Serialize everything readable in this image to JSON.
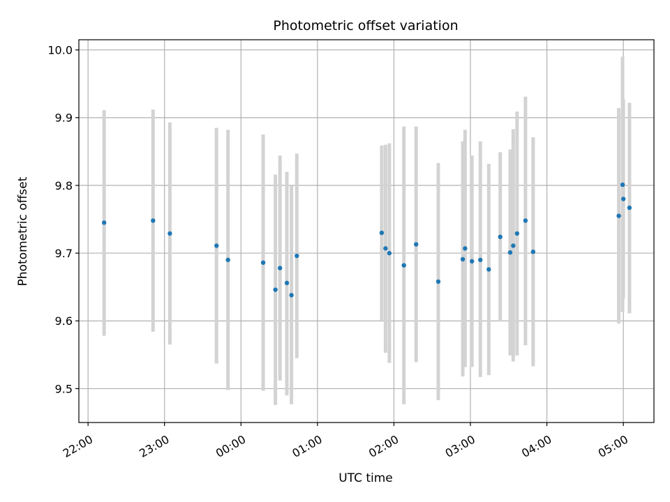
{
  "chart_data": {
    "type": "scatter",
    "title": "Photometric offset variation",
    "xlabel": "UTC time",
    "ylabel": "Photometric offset",
    "x_unit": "hours since 22:00 UTC",
    "xlim": [
      -0.12,
      7.4
    ],
    "ylim": [
      9.45,
      10.015
    ],
    "grid": true,
    "xticks": [
      {
        "x": 0,
        "label": "22:00"
      },
      {
        "x": 1,
        "label": "23:00"
      },
      {
        "x": 2,
        "label": "00:00"
      },
      {
        "x": 3,
        "label": "01:00"
      },
      {
        "x": 4,
        "label": "02:00"
      },
      {
        "x": 5,
        "label": "03:00"
      },
      {
        "x": 6,
        "label": "04:00"
      },
      {
        "x": 7,
        "label": "05:00"
      }
    ],
    "yticks": [
      {
        "y": 9.5,
        "label": "9.5"
      },
      {
        "y": 9.6,
        "label": "9.6"
      },
      {
        "y": 9.7,
        "label": "9.7"
      },
      {
        "y": 9.8,
        "label": "9.8"
      },
      {
        "y": 9.9,
        "label": "9.9"
      },
      {
        "y": 10.0,
        "label": "10.0"
      }
    ],
    "colors": {
      "point": "#1f77b4",
      "errorbar": "#d3d3d3",
      "grid": "#b0b0b0"
    },
    "points": [
      {
        "x": 0.21,
        "y": 9.745,
        "ylo": 9.578,
        "yhi": 9.911
      },
      {
        "x": 0.85,
        "y": 9.748,
        "ylo": 9.584,
        "yhi": 9.912
      },
      {
        "x": 1.07,
        "y": 9.729,
        "ylo": 9.565,
        "yhi": 9.893
      },
      {
        "x": 1.68,
        "y": 9.711,
        "ylo": 9.537,
        "yhi": 9.885
      },
      {
        "x": 1.83,
        "y": 9.69,
        "ylo": 9.498,
        "yhi": 9.882
      },
      {
        "x": 2.29,
        "y": 9.686,
        "ylo": 9.497,
        "yhi": 9.875
      },
      {
        "x": 2.45,
        "y": 9.646,
        "ylo": 9.476,
        "yhi": 9.816
      },
      {
        "x": 2.51,
        "y": 9.678,
        "ylo": 9.512,
        "yhi": 9.844
      },
      {
        "x": 2.6,
        "y": 9.656,
        "ylo": 9.49,
        "yhi": 9.82
      },
      {
        "x": 2.66,
        "y": 9.638,
        "ylo": 9.477,
        "yhi": 9.799
      },
      {
        "x": 2.73,
        "y": 9.696,
        "ylo": 9.545,
        "yhi": 9.847
      },
      {
        "x": 3.84,
        "y": 9.73,
        "ylo": 9.601,
        "yhi": 9.859
      },
      {
        "x": 3.89,
        "y": 9.707,
        "ylo": 9.553,
        "yhi": 9.86
      },
      {
        "x": 3.94,
        "y": 9.7,
        "ylo": 9.538,
        "yhi": 9.862
      },
      {
        "x": 4.13,
        "y": 9.682,
        "ylo": 9.477,
        "yhi": 9.887
      },
      {
        "x": 4.29,
        "y": 9.713,
        "ylo": 9.539,
        "yhi": 9.887
      },
      {
        "x": 4.58,
        "y": 9.658,
        "ylo": 9.483,
        "yhi": 9.833
      },
      {
        "x": 4.9,
        "y": 9.691,
        "ylo": 9.518,
        "yhi": 9.865
      },
      {
        "x": 4.93,
        "y": 9.707,
        "ylo": 9.532,
        "yhi": 9.882
      },
      {
        "x": 5.02,
        "y": 9.688,
        "ylo": 9.532,
        "yhi": 9.844
      },
      {
        "x": 5.13,
        "y": 9.69,
        "ylo": 9.517,
        "yhi": 9.865
      },
      {
        "x": 5.24,
        "y": 9.676,
        "ylo": 9.52,
        "yhi": 9.832
      },
      {
        "x": 5.39,
        "y": 9.724,
        "ylo": 9.599,
        "yhi": 9.849
      },
      {
        "x": 5.52,
        "y": 9.701,
        "ylo": 9.549,
        "yhi": 9.853
      },
      {
        "x": 5.56,
        "y": 9.711,
        "ylo": 9.54,
        "yhi": 9.883
      },
      {
        "x": 5.61,
        "y": 9.729,
        "ylo": 9.549,
        "yhi": 9.909
      },
      {
        "x": 5.72,
        "y": 9.748,
        "ylo": 9.564,
        "yhi": 9.931
      },
      {
        "x": 5.82,
        "y": 9.702,
        "ylo": 9.533,
        "yhi": 9.871
      },
      {
        "x": 6.94,
        "y": 9.755,
        "ylo": 9.596,
        "yhi": 9.914
      },
      {
        "x": 6.99,
        "y": 9.801,
        "ylo": 9.613,
        "yhi": 9.99
      },
      {
        "x": 7.0,
        "y": 9.78,
        "ylo": 9.633,
        "yhi": 9.927
      },
      {
        "x": 7.08,
        "y": 9.767,
        "ylo": 9.611,
        "yhi": 9.922
      }
    ]
  }
}
